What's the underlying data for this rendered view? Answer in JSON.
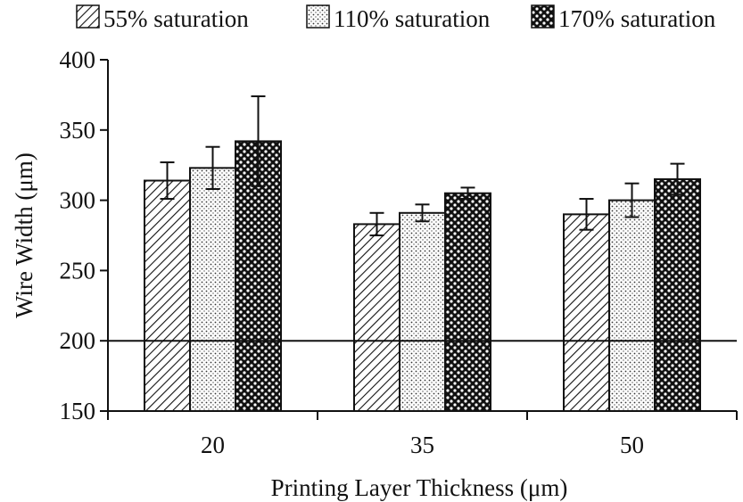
{
  "chart_data": {
    "type": "bar",
    "categories": [
      "20",
      "35",
      "50"
    ],
    "series": [
      {
        "name": "55% saturation",
        "values": [
          314,
          283,
          290
        ],
        "errors": [
          13,
          8,
          11
        ],
        "pattern": "diagonal-hatch"
      },
      {
        "name": "110% saturation",
        "values": [
          323,
          291,
          300
        ],
        "errors": [
          15,
          6,
          12
        ],
        "pattern": "fine-dots"
      },
      {
        "name": "170% saturation",
        "values": [
          342,
          305,
          315
        ],
        "errors": [
          32,
          4,
          11
        ],
        "pattern": "coarse-dots"
      }
    ],
    "xlabel": "Printing Layer Thickness (μm)",
    "ylabel": "Wire Width (μm)",
    "ylim": [
      150,
      400
    ],
    "yticks": [
      "150",
      "200",
      "250",
      "300",
      "350",
      "400"
    ],
    "reference_line": 200,
    "legend_position": "top",
    "grid": false,
    "colors": {
      "ink": "#111111",
      "background": "#ffffff"
    }
  }
}
